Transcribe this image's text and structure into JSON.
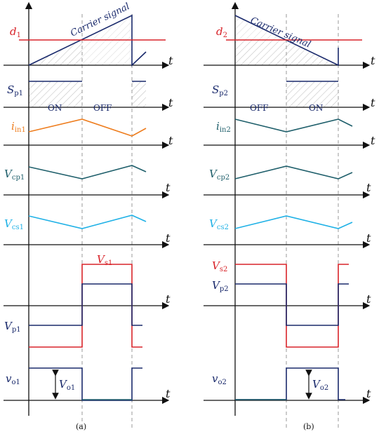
{
  "colors": {
    "navy": "#1a2a6c",
    "red": "#d8242a",
    "orange": "#ee7d1e",
    "teal": "#1f5f6b",
    "cyan": "#1fb1e6",
    "hatch": "#bdbdbd",
    "dash": "#9a9a9a",
    "axis": "#111111"
  },
  "axis_label": "t",
  "left": {
    "caption": "(a)",
    "carrier_label": "Carrier signal",
    "duty_label": {
      "main": "d",
      "sub": "1"
    },
    "gate_label": {
      "main": "S",
      "sub": "p1"
    },
    "on_label": "ON",
    "off_label": "OFF",
    "current_label": {
      "main": "i",
      "sub": "in1"
    },
    "vcp_label": {
      "main": "V",
      "sub": "cp1"
    },
    "vcs_label": {
      "main": "V",
      "sub": "cs1"
    },
    "vs_label": {
      "main": "V",
      "sub": "s1"
    },
    "vp_label": {
      "main": "V",
      "sub": "p1"
    },
    "vo_label": {
      "main": "v",
      "sub": "o1"
    },
    "vo_amp_label": {
      "main": "V",
      "sub": "o1"
    }
  },
  "right": {
    "caption": "(b)",
    "carrier_label": "Carrier signal",
    "duty_label": {
      "main": "d",
      "sub": "2"
    },
    "gate_label": {
      "main": "S",
      "sub": "p2"
    },
    "on_label": "ON",
    "off_label": "OFF",
    "current_label": {
      "main": "i",
      "sub": "in2"
    },
    "vcp_label": {
      "main": "V",
      "sub": "cp2"
    },
    "vcs_label": {
      "main": "V",
      "sub": "cs2"
    },
    "vs_label": {
      "main": "V",
      "sub": "s2"
    },
    "vp_label": {
      "main": "V",
      "sub": "p2"
    },
    "vo_label": {
      "main": "v",
      "sub": "o2"
    },
    "vo_amp_label": {
      "main": "V",
      "sub": "o2"
    }
  }
}
